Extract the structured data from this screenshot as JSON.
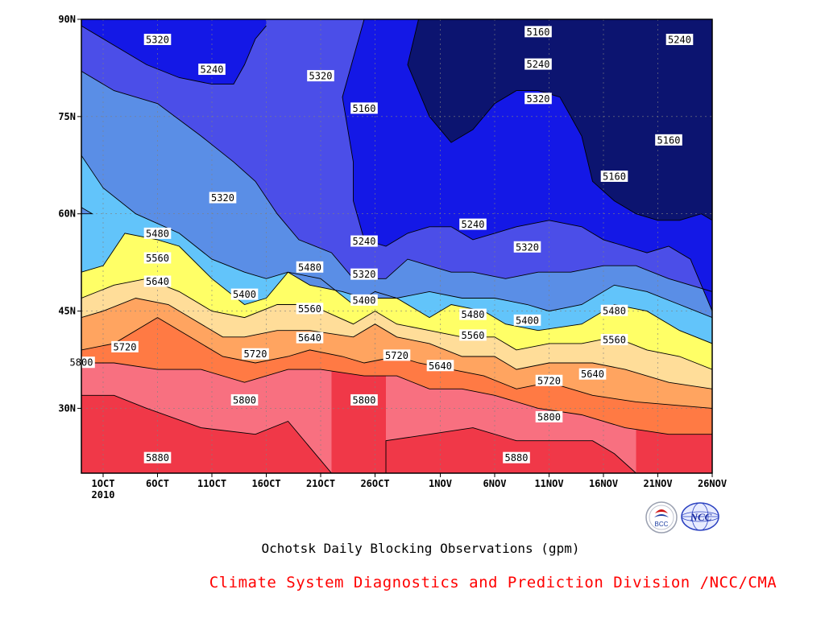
{
  "chart_data": {
    "type": "contour",
    "title": "Ochotsk Daily Blocking Observations (gpm)",
    "credit": "Climate System Diagnostics and Prediction Division /NCC/CMA",
    "x_ticks": [
      {
        "value": 3,
        "label": "1OCT",
        "sublabel": "2010"
      },
      {
        "value": 8,
        "label": "6OCT"
      },
      {
        "value": 13,
        "label": "11OCT"
      },
      {
        "value": 18,
        "label": "16OCT"
      },
      {
        "value": 23,
        "label": "21OCT"
      },
      {
        "value": 28,
        "label": "26OCT"
      },
      {
        "value": 34,
        "label": "1NOV"
      },
      {
        "value": 39,
        "label": "6NOV"
      },
      {
        "value": 44,
        "label": "11NOV"
      },
      {
        "value": 49,
        "label": "16NOV"
      },
      {
        "value": 54,
        "label": "21NOV"
      },
      {
        "value": 59,
        "label": "26NOV"
      }
    ],
    "y_ticks": [
      {
        "value": 30,
        "label": "30N"
      },
      {
        "value": 45,
        "label": "45N"
      },
      {
        "value": 60,
        "label": "60N"
      },
      {
        "value": 75,
        "label": "75N"
      },
      {
        "value": 90,
        "label": "90N"
      }
    ],
    "xlim": [
      1,
      59
    ],
    "ylim": [
      20,
      90
    ],
    "grid": true,
    "levels": [
      5160,
      5240,
      5320,
      5400,
      5480,
      5560,
      5640,
      5720,
      5800,
      5880
    ],
    "colors": [
      "#0c1470",
      "#1418e6",
      "#4b4ee8",
      "#5a8ee6",
      "#62c4fa",
      "#ffff66",
      "#ffdd99",
      "#ffa460",
      "#ff7a44",
      "#f87080",
      "#f03848"
    ],
    "contours": [
      {
        "level": 5880,
        "points": [
          [
            1,
            32
          ],
          [
            4,
            32
          ],
          [
            7,
            30
          ],
          [
            12,
            27
          ],
          [
            17,
            26
          ],
          [
            20,
            28
          ],
          [
            22,
            24
          ],
          [
            24,
            20
          ],
          null,
          [
            29,
            20
          ],
          [
            29,
            25
          ],
          [
            33,
            26
          ],
          [
            37,
            27
          ],
          [
            41,
            25
          ],
          [
            45,
            25
          ],
          [
            48,
            25
          ],
          [
            50,
            23
          ],
          [
            52,
            20
          ]
        ]
      },
      {
        "level": 5800,
        "points": [
          [
            1,
            37
          ],
          [
            4,
            37
          ],
          [
            8,
            36
          ],
          [
            12,
            36
          ],
          [
            16,
            34
          ],
          [
            20,
            36
          ],
          [
            23,
            36
          ],
          [
            27,
            35
          ],
          [
            30,
            35
          ],
          [
            33,
            33
          ],
          [
            36,
            33
          ],
          [
            39,
            32
          ],
          [
            43,
            30
          ],
          [
            47,
            29
          ],
          [
            51,
            27
          ],
          [
            55,
            26
          ],
          [
            59,
            26
          ]
        ]
      },
      {
        "level": 5720,
        "points": [
          [
            1,
            39
          ],
          [
            4,
            40
          ],
          [
            8,
            44
          ],
          [
            11,
            41
          ],
          [
            14,
            38
          ],
          [
            17,
            37
          ],
          [
            20,
            38
          ],
          [
            22,
            39
          ],
          [
            25,
            38
          ],
          [
            27,
            37
          ],
          [
            30,
            38
          ],
          [
            32,
            37
          ],
          [
            35,
            36
          ],
          [
            38,
            35
          ],
          [
            41,
            33
          ],
          [
            44,
            34
          ],
          [
            48,
            32
          ],
          [
            52,
            31
          ],
          [
            59,
            30
          ]
        ]
      },
      {
        "level": 5640,
        "points": [
          [
            1,
            44
          ],
          [
            3,
            45
          ],
          [
            6,
            47
          ],
          [
            9,
            46
          ],
          [
            11,
            44
          ],
          [
            14,
            41
          ],
          [
            16,
            41
          ],
          [
            19,
            42
          ],
          [
            22,
            42
          ],
          [
            26,
            41
          ],
          [
            28,
            43
          ],
          [
            30,
            41
          ],
          [
            33,
            40
          ],
          [
            36,
            38
          ],
          [
            39,
            38
          ],
          [
            41,
            36
          ],
          [
            44,
            37
          ],
          [
            48,
            37
          ],
          [
            51,
            36
          ],
          [
            55,
            34
          ],
          [
            59,
            33
          ]
        ]
      },
      {
        "level": 5560,
        "points": [
          [
            1,
            47
          ],
          [
            4,
            49
          ],
          [
            7,
            50
          ],
          [
            10,
            48
          ],
          [
            13,
            45
          ],
          [
            16,
            44
          ],
          [
            19,
            46
          ],
          [
            22,
            46
          ],
          [
            26,
            43
          ],
          [
            28,
            45
          ],
          [
            30,
            43
          ],
          [
            33,
            42
          ],
          [
            36,
            41
          ],
          [
            39,
            41
          ],
          [
            41,
            39
          ],
          [
            44,
            40
          ],
          [
            47,
            40
          ],
          [
            50,
            41
          ],
          [
            53,
            39
          ],
          [
            56,
            38
          ],
          [
            59,
            36
          ]
        ]
      },
      {
        "level": 5480,
        "points": [
          [
            1,
            51
          ],
          [
            3,
            52
          ],
          [
            5,
            57
          ],
          [
            8,
            56
          ],
          [
            10,
            55
          ],
          [
            13,
            50
          ],
          [
            16,
            46
          ],
          [
            18,
            47
          ],
          [
            20,
            51
          ],
          [
            23,
            50
          ],
          [
            26,
            46
          ],
          [
            28,
            48
          ],
          [
            30,
            47
          ],
          [
            33,
            44
          ],
          [
            35,
            46
          ],
          [
            38,
            45
          ],
          [
            40,
            43
          ],
          [
            43,
            42
          ],
          [
            47,
            43
          ],
          [
            50,
            46
          ],
          [
            53,
            45
          ],
          [
            56,
            42
          ],
          [
            59,
            40
          ]
        ]
      },
      {
        "level": 5400,
        "points": [
          [
            1,
            60
          ],
          [
            2,
            60
          ],
          [
            1,
            61
          ],
          null,
          [
            1,
            69
          ],
          [
            3,
            64
          ],
          [
            6,
            60
          ],
          [
            10,
            57
          ],
          [
            13,
            53
          ],
          [
            16,
            51
          ],
          [
            18,
            50
          ],
          [
            20,
            51
          ],
          [
            22,
            49
          ],
          [
            25,
            48
          ],
          [
            27,
            47
          ],
          [
            30,
            47
          ],
          [
            33,
            48
          ],
          [
            36,
            47
          ],
          [
            39,
            47
          ],
          [
            42,
            46
          ],
          [
            44,
            45
          ],
          [
            47,
            46
          ],
          [
            50,
            49
          ],
          [
            53,
            48
          ],
          [
            56,
            46
          ],
          [
            59,
            44
          ]
        ]
      },
      {
        "level": 5320,
        "points": [
          [
            1,
            82
          ],
          [
            4,
            79
          ],
          [
            8,
            77
          ],
          [
            12,
            72
          ],
          [
            15,
            68
          ],
          [
            17,
            65
          ],
          [
            19,
            60
          ],
          [
            21,
            56
          ],
          [
            24,
            54
          ],
          [
            26,
            50
          ],
          [
            29,
            50
          ],
          [
            31,
            53
          ],
          [
            33,
            52
          ],
          [
            35,
            51
          ],
          [
            37,
            51
          ],
          [
            40,
            50
          ],
          [
            43,
            51
          ],
          [
            46,
            51
          ],
          [
            49,
            52
          ],
          [
            52,
            52
          ],
          [
            55,
            50
          ],
          [
            59,
            48
          ]
        ]
      },
      {
        "level": 5240,
        "points": [
          [
            1,
            89
          ],
          [
            4,
            86
          ],
          [
            7,
            83
          ],
          [
            10,
            81
          ],
          [
            13,
            80
          ],
          [
            15,
            80
          ],
          [
            16,
            83
          ],
          [
            17,
            87
          ],
          [
            18,
            89
          ],
          null,
          [
            27,
            90
          ],
          [
            26,
            84
          ],
          [
            25,
            78
          ],
          [
            26,
            68
          ],
          [
            26,
            62
          ],
          [
            27,
            56
          ],
          [
            29,
            55
          ],
          [
            31,
            57
          ],
          [
            33,
            58
          ],
          [
            35,
            58
          ],
          [
            37,
            56
          ],
          [
            39,
            57
          ],
          [
            41,
            58
          ],
          [
            44,
            59
          ],
          [
            47,
            58
          ],
          [
            49,
            56
          ],
          [
            51,
            55
          ],
          [
            53,
            54
          ],
          [
            55,
            55
          ],
          [
            57,
            53
          ],
          [
            59,
            45
          ]
        ]
      },
      {
        "level": 5160,
        "points": [
          [
            32,
            90
          ],
          [
            31,
            83
          ],
          [
            33,
            75
          ],
          [
            35,
            71
          ],
          [
            37,
            73
          ],
          [
            39,
            77
          ],
          [
            41,
            79
          ],
          [
            43,
            79
          ],
          [
            45,
            78
          ],
          [
            47,
            72
          ],
          [
            48,
            65
          ],
          [
            50,
            62
          ],
          [
            52,
            60
          ],
          [
            54,
            59
          ],
          [
            56,
            59
          ],
          [
            58,
            60
          ],
          [
            59,
            59
          ]
        ]
      }
    ],
    "labels": [
      {
        "x": 1,
        "y": 37.1,
        "text": "5800"
      },
      {
        "x": 5,
        "y": 39.5,
        "text": "5720"
      },
      {
        "x": 8,
        "y": 49.6,
        "text": "5640"
      },
      {
        "x": 8,
        "y": 53.2,
        "text": "5560"
      },
      {
        "x": 8,
        "y": 57,
        "text": "5480"
      },
      {
        "x": 8,
        "y": 22.4,
        "text": "5880"
      },
      {
        "x": 8,
        "y": 86.9,
        "text": "5320"
      },
      {
        "x": 13,
        "y": 82.3,
        "text": "5240"
      },
      {
        "x": 14,
        "y": 62.5,
        "text": "5320"
      },
      {
        "x": 16,
        "y": 47.6,
        "text": "5400"
      },
      {
        "x": 17,
        "y": 38.4,
        "text": "5720"
      },
      {
        "x": 16,
        "y": 31.3,
        "text": "5800"
      },
      {
        "x": 22,
        "y": 51.8,
        "text": "5480"
      },
      {
        "x": 22,
        "y": 45.4,
        "text": "5560"
      },
      {
        "x": 22,
        "y": 40.9,
        "text": "5640"
      },
      {
        "x": 23,
        "y": 81.3,
        "text": "5320"
      },
      {
        "x": 27,
        "y": 76.3,
        "text": "5160"
      },
      {
        "x": 27,
        "y": 55.8,
        "text": "5240"
      },
      {
        "x": 27,
        "y": 50.7,
        "text": "5320"
      },
      {
        "x": 27,
        "y": 46.7,
        "text": "5400"
      },
      {
        "x": 27,
        "y": 31.3,
        "text": "5800"
      },
      {
        "x": 30,
        "y": 38.2,
        "text": "5720"
      },
      {
        "x": 34,
        "y": 36.6,
        "text": "5640"
      },
      {
        "x": 37,
        "y": 44.5,
        "text": "5480"
      },
      {
        "x": 37,
        "y": 41.3,
        "text": "5560"
      },
      {
        "x": 37,
        "y": 58.4,
        "text": "5240"
      },
      {
        "x": 41,
        "y": 22.4,
        "text": "5880"
      },
      {
        "x": 43,
        "y": 88.1,
        "text": "5160"
      },
      {
        "x": 43,
        "y": 83.1,
        "text": "5240"
      },
      {
        "x": 43,
        "y": 77.8,
        "text": "5320"
      },
      {
        "x": 42,
        "y": 54.9,
        "text": "5320"
      },
      {
        "x": 42,
        "y": 43.6,
        "text": "5400"
      },
      {
        "x": 44,
        "y": 34.3,
        "text": "5720"
      },
      {
        "x": 44,
        "y": 28.7,
        "text": "5800"
      },
      {
        "x": 48,
        "y": 35.3,
        "text": "5640"
      },
      {
        "x": 50,
        "y": 45.1,
        "text": "5480"
      },
      {
        "x": 50,
        "y": 40.6,
        "text": "5560"
      },
      {
        "x": 50,
        "y": 65.8,
        "text": "5160"
      },
      {
        "x": 55,
        "y": 71.4,
        "text": "5160"
      },
      {
        "x": 56,
        "y": 86.9,
        "text": "5240"
      }
    ]
  },
  "logos": {
    "left_text": "BCC",
    "right_text": "NCC"
  }
}
